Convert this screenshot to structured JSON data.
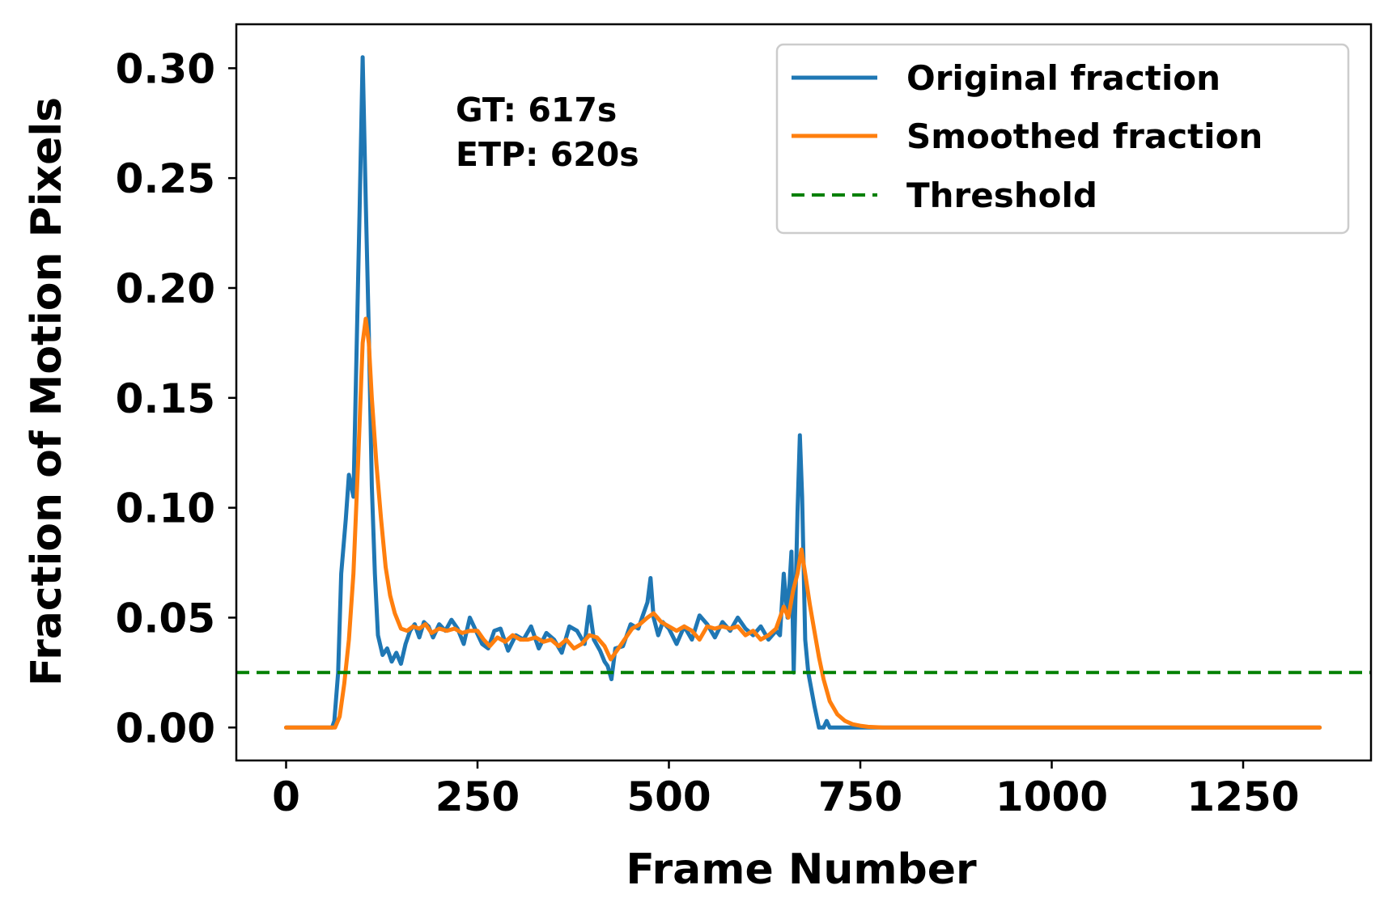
{
  "chart_data": {
    "type": "line",
    "title": "",
    "xlabel": "Frame Number",
    "ylabel": "Fraction of Motion Pixels",
    "xlim": [
      -65,
      1417
    ],
    "ylim": [
      -0.015,
      0.32
    ],
    "xticks": [
      0,
      250,
      500,
      750,
      1000,
      1250
    ],
    "yticks": [
      0.0,
      0.05,
      0.1,
      0.15,
      0.2,
      0.25,
      0.3
    ],
    "xtick_labels": [
      "0",
      "250",
      "500",
      "750",
      "1000",
      "1250"
    ],
    "ytick_labels": [
      "0.00",
      "0.05",
      "0.10",
      "0.15",
      "0.20",
      "0.25",
      "0.30"
    ],
    "grid": false,
    "legend_position": "top-right",
    "annotations": [
      "GT: 617s",
      "ETP: 620s"
    ],
    "series": [
      {
        "name": "Original fraction",
        "color": "#1f77b4",
        "style": "solid",
        "x": [
          0,
          60,
          63,
          68,
          72,
          78,
          82,
          88,
          92,
          96,
          100,
          104,
          108,
          112,
          116,
          120,
          126,
          132,
          138,
          144,
          150,
          156,
          162,
          168,
          174,
          180,
          186,
          192,
          200,
          208,
          216,
          224,
          232,
          240,
          248,
          256,
          264,
          272,
          280,
          290,
          300,
          310,
          320,
          330,
          340,
          350,
          360,
          370,
          380,
          390,
          396,
          402,
          410,
          416,
          420,
          425,
          430,
          440,
          450,
          460,
          466,
          472,
          476,
          480,
          486,
          492,
          500,
          510,
          520,
          530,
          540,
          550,
          560,
          570,
          580,
          590,
          600,
          610,
          620,
          630,
          640,
          645,
          650,
          655,
          660,
          663,
          668,
          671,
          674,
          678,
          682,
          690,
          696,
          702,
          706,
          710,
          720,
          1350
        ],
        "y": [
          0.0,
          0.0,
          0.003,
          0.025,
          0.07,
          0.095,
          0.115,
          0.105,
          0.17,
          0.235,
          0.305,
          0.24,
          0.18,
          0.11,
          0.07,
          0.042,
          0.033,
          0.036,
          0.03,
          0.034,
          0.029,
          0.038,
          0.044,
          0.047,
          0.041,
          0.048,
          0.046,
          0.041,
          0.047,
          0.044,
          0.049,
          0.045,
          0.038,
          0.05,
          0.044,
          0.038,
          0.036,
          0.044,
          0.045,
          0.035,
          0.042,
          0.04,
          0.046,
          0.036,
          0.043,
          0.04,
          0.034,
          0.046,
          0.044,
          0.038,
          0.055,
          0.04,
          0.035,
          0.03,
          0.028,
          0.022,
          0.036,
          0.037,
          0.047,
          0.045,
          0.051,
          0.057,
          0.068,
          0.05,
          0.042,
          0.048,
          0.045,
          0.038,
          0.046,
          0.04,
          0.051,
          0.047,
          0.041,
          0.048,
          0.044,
          0.05,
          0.045,
          0.042,
          0.046,
          0.04,
          0.044,
          0.042,
          0.07,
          0.05,
          0.08,
          0.025,
          0.098,
          0.133,
          0.105,
          0.04,
          0.025,
          0.01,
          0.0,
          0.0,
          0.003,
          0.0,
          0.0,
          0.0
        ]
      },
      {
        "name": "Smoothed fraction",
        "color": "#ff7f0e",
        "style": "solid",
        "x": [
          0,
          64,
          70,
          76,
          82,
          88,
          94,
          100,
          104,
          108,
          112,
          118,
          124,
          130,
          136,
          142,
          150,
          158,
          166,
          174,
          182,
          190,
          200,
          210,
          220,
          230,
          240,
          250,
          258,
          266,
          276,
          286,
          296,
          306,
          316,
          326,
          336,
          346,
          356,
          366,
          376,
          386,
          396,
          406,
          416,
          424,
          432,
          442,
          452,
          462,
          472,
          480,
          490,
          500,
          510,
          520,
          530,
          540,
          550,
          560,
          570,
          580,
          590,
          600,
          610,
          620,
          630,
          640,
          650,
          656,
          662,
          668,
          673,
          678,
          684,
          690,
          696,
          702,
          710,
          720,
          730,
          740,
          750,
          760,
          780,
          1350
        ],
        "y": [
          0.0,
          0.0,
          0.005,
          0.02,
          0.04,
          0.07,
          0.12,
          0.175,
          0.186,
          0.175,
          0.15,
          0.12,
          0.095,
          0.073,
          0.06,
          0.052,
          0.045,
          0.044,
          0.046,
          0.045,
          0.047,
          0.043,
          0.045,
          0.044,
          0.045,
          0.043,
          0.044,
          0.044,
          0.04,
          0.037,
          0.041,
          0.039,
          0.042,
          0.04,
          0.04,
          0.041,
          0.039,
          0.04,
          0.037,
          0.04,
          0.036,
          0.038,
          0.042,
          0.041,
          0.037,
          0.031,
          0.035,
          0.04,
          0.045,
          0.047,
          0.05,
          0.052,
          0.048,
          0.046,
          0.044,
          0.046,
          0.044,
          0.04,
          0.046,
          0.045,
          0.046,
          0.045,
          0.046,
          0.042,
          0.044,
          0.04,
          0.042,
          0.045,
          0.055,
          0.05,
          0.062,
          0.07,
          0.081,
          0.07,
          0.056,
          0.044,
          0.032,
          0.022,
          0.012,
          0.006,
          0.003,
          0.0015,
          0.0008,
          0.0003,
          0.0,
          0.0
        ]
      },
      {
        "name": "Threshold",
        "color": "#008000",
        "style": "dashed",
        "x": [
          -65,
          1417
        ],
        "y": [
          0.025,
          0.025
        ]
      }
    ]
  }
}
